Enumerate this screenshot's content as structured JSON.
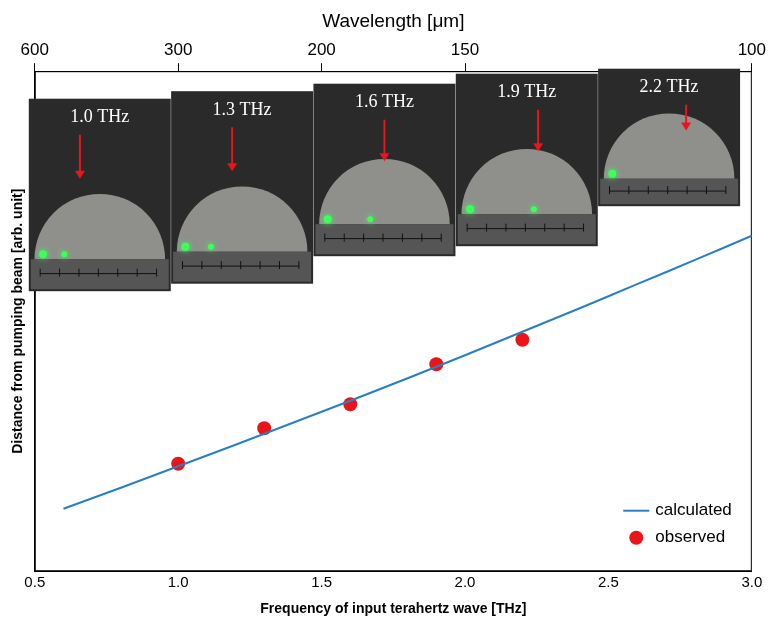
{
  "chart_data": {
    "type": "line",
    "x_label": "Frequency of input terahertz wave [THz]",
    "y_label": "Distance from pumping beam [arb. unit]",
    "x2_label": "Wavelength [μm]",
    "xlim": [
      0.5,
      3.0
    ],
    "xticks": [
      0.5,
      {
        "value": 1,
        "label": "1.0"
      },
      1.5,
      {
        "value": 2,
        "label": "2.0"
      },
      2.5,
      {
        "value": 3,
        "label": "3.0"
      }
    ],
    "x2lim": [
      600,
      100
    ],
    "x2ticks": [
      600,
      300,
      200,
      150,
      100
    ],
    "ylim": [
      0,
      10
    ],
    "tick_labels": "x",
    "grid": false,
    "legend": "lower right",
    "series": [
      {
        "name": "calculated",
        "type": "line",
        "color": "#2b7fc1",
        "line_style": "solid",
        "x": [
          0.6,
          0.8,
          1.0,
          1.2,
          1.4,
          1.6,
          1.8,
          2.0,
          2.2,
          2.4,
          2.6,
          2.8,
          3.0
        ],
        "values": [
          1.25,
          1.67,
          2.1,
          2.53,
          2.97,
          3.41,
          3.86,
          4.32,
          4.79,
          5.26,
          5.74,
          6.22,
          6.71
        ]
      },
      {
        "name": "observed",
        "type": "scatter",
        "color": "#e8151b",
        "marker": "circle",
        "x": [
          1.0,
          1.3,
          1.6,
          1.9,
          2.2
        ],
        "values": [
          2.15,
          2.86,
          3.34,
          4.14,
          4.63
        ]
      }
    ],
    "annotations": [
      "1.0 THz",
      "1.3 THz",
      "1.6 THz",
      "1.9 THz",
      "2.2 THz"
    ]
  }
}
